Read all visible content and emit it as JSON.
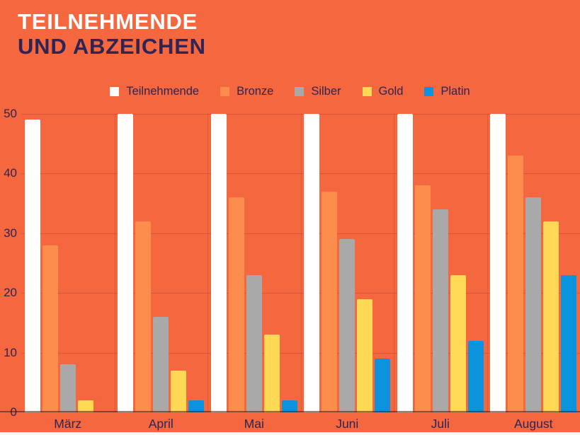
{
  "title": {
    "line1": "TEILNEHMENDE",
    "line2": "UND ABZEICHEN"
  },
  "colors": {
    "background": "#F5673E",
    "title_line1": "#FFFFFF",
    "title_line2": "#2F2452",
    "text": "#2F2452",
    "gridline": "rgba(150,48,34,0.30)",
    "axis_line": "rgba(62,24,22,0.55)",
    "bottom_strip": "#FAF8F5"
  },
  "legend": {
    "items": [
      {
        "label": "Teilnehmende",
        "color": "#FFFFFF"
      },
      {
        "label": "Bronze",
        "color": "#FC8D4D"
      },
      {
        "label": "Silber",
        "color": "#A9A9A9"
      },
      {
        "label": "Gold",
        "color": "#FFD955"
      },
      {
        "label": "Platin",
        "color": "#0D93DD"
      }
    ],
    "position": "top-center"
  },
  "chart_data": {
    "type": "bar",
    "title": "TEILNEHMENDE UND ABZEICHEN",
    "categories": [
      "März",
      "April",
      "Mai",
      "Juni",
      "Juli",
      "August"
    ],
    "series": [
      {
        "name": "Teilnehmende",
        "color": "#FFFFFF",
        "values": [
          49,
          50,
          50,
          50,
          50,
          50
        ]
      },
      {
        "name": "Bronze",
        "color": "#FC8D4D",
        "values": [
          28,
          32,
          36,
          37,
          38,
          43
        ]
      },
      {
        "name": "Silber",
        "color": "#A9A9A9",
        "values": [
          8,
          16,
          23,
          29,
          34,
          36
        ]
      },
      {
        "name": "Gold",
        "color": "#FFD955",
        "values": [
          2,
          7,
          13,
          19,
          23,
          32
        ]
      },
      {
        "name": "Platin",
        "color": "#0D93DD",
        "values": [
          0,
          2,
          2,
          9,
          12,
          23
        ]
      }
    ],
    "xlabel": "",
    "ylabel": "",
    "ylim": [
      0,
      50
    ],
    "yticks": [
      0,
      10,
      20,
      30,
      40,
      50
    ],
    "grid": true,
    "legend_position": "top-center"
  }
}
